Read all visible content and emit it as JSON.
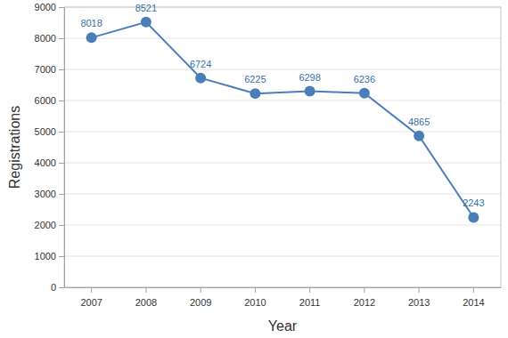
{
  "chart_data": {
    "type": "line",
    "x_label": "Year",
    "y_label": "Registrations",
    "categories": [
      "2007",
      "2008",
      "2009",
      "2010",
      "2011",
      "2012",
      "2013",
      "2014"
    ],
    "values": [
      8018,
      8521,
      6724,
      6225,
      6298,
      6236,
      4865,
      2243
    ],
    "color": "#4a7ebb",
    "marker": "circle",
    "ylim": [
      0,
      9000
    ],
    "yticks": [
      0,
      1000,
      2000,
      3000,
      4000,
      5000,
      6000,
      7000,
      8000,
      9000
    ],
    "grid": true,
    "data_labels": true
  }
}
